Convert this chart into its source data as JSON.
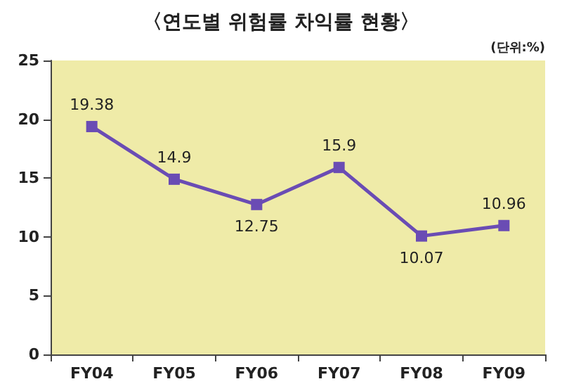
{
  "chart_data": {
    "type": "line",
    "title": "〈연도별 위험률 차익률 현황〉",
    "annotations": [
      "(단위:%)"
    ],
    "categories": [
      "FY04",
      "FY05",
      "FY06",
      "FY07",
      "FY08",
      "FY09"
    ],
    "series": [
      {
        "color": "#6a4cb4",
        "values": [
          19.38,
          14.9,
          12.75,
          15.9,
          10.07,
          10.96
        ]
      }
    ],
    "ylim": [
      0,
      25
    ],
    "yticks": [
      0,
      5,
      10,
      15,
      20,
      25
    ],
    "data_labels": true,
    "marker": "square",
    "line_style": "solid",
    "grid": false
  }
}
